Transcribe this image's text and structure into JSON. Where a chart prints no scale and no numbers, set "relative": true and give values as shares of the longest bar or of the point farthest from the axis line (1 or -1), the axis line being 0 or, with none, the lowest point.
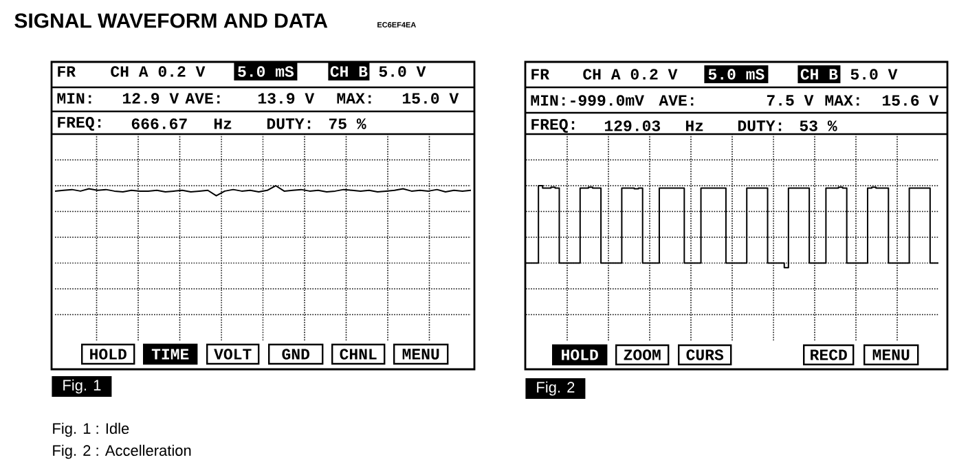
{
  "chart_data": [
    {
      "type": "line",
      "title": "SIGNAL WAVEFORM AND DATA",
      "subtitle": "EC6EF4EA",
      "relative": true,
      "grid": true,
      "color": "#000000",
      "categories": [
        null,
        null,
        null,
        null,
        null,
        null,
        null,
        null,
        null,
        null,
        null,
        null,
        null,
        null,
        null,
        null,
        null,
        null,
        null,
        null,
        null,
        null,
        null,
        null,
        null,
        null,
        null,
        null,
        null,
        null,
        null,
        null,
        null,
        null,
        null,
        null,
        null,
        null,
        null,
        null,
        null,
        null,
        null,
        null,
        null,
        null,
        null,
        null,
        null,
        null
      ],
      "values": [
        0.93,
        0.94,
        0.95,
        0.93,
        0.96,
        0.94,
        0.95,
        0.93,
        0.92,
        0.94,
        0.93,
        0.93,
        0.94,
        0.92,
        0.93,
        0.94,
        0.92,
        0.93,
        0.94,
        0.87,
        0.93,
        0.95,
        0.93,
        0.94,
        0.92,
        0.94,
        1.0,
        0.93,
        0.94,
        0.95,
        0.93,
        0.94,
        0.92,
        0.93,
        0.95,
        0.94,
        0.93,
        0.94,
        0.92,
        0.93,
        0.94,
        0.96,
        0.93,
        0.94,
        0.93,
        0.95,
        0.92,
        0.94,
        0.93,
        0.94
      ],
      "annotations": [
        "FR",
        "CH A 0.2 V",
        "5.0 mS",
        "CH B",
        "5.0 V",
        "MIN:",
        "12.9 V",
        "AVE:",
        "13.9 V",
        "MAX:",
        "15.0 V",
        "FREQ:",
        "666.67",
        "Hz",
        "DUTY:",
        "75 %",
        "HOLD",
        "TIME",
        "VOLT",
        "GND",
        "CHNL",
        "MENU",
        "Fig. 1",
        "Fig. 1 : Idle"
      ]
    },
    {
      "type": "step",
      "relative": true,
      "grid": true,
      "color": "#000000",
      "categories": [
        null,
        null,
        null,
        null,
        null,
        null,
        null,
        null,
        null,
        null,
        null,
        null,
        null,
        null,
        null,
        null,
        null,
        null,
        null,
        null,
        null,
        null,
        null,
        null,
        null,
        null,
        null,
        null,
        null,
        null,
        null,
        null,
        null,
        null,
        null,
        null,
        null,
        null,
        null,
        null,
        null,
        null,
        null,
        null,
        null,
        null,
        null,
        null,
        null,
        null,
        null,
        null,
        null,
        null,
        null,
        null,
        null,
        null,
        null,
        null,
        null,
        null,
        null,
        null,
        null,
        null,
        null,
        null,
        null,
        null,
        null,
        null,
        null,
        null,
        null,
        null,
        null,
        null,
        null,
        null,
        null,
        null,
        null,
        null,
        null,
        null,
        null,
        null,
        null,
        null,
        null,
        null,
        null,
        null,
        null,
        null,
        null,
        null,
        null,
        null
      ],
      "values": [
        0,
        0,
        0,
        1,
        0.97,
        0.97,
        0.98,
        0.97,
        0,
        0,
        0,
        0,
        0,
        0.97,
        0.97,
        0.98,
        0.97,
        0.97,
        0,
        0,
        0,
        0,
        0,
        0.97,
        0.97,
        0.97,
        0.96,
        0.97,
        0,
        0,
        0,
        0,
        0.97,
        0.97,
        0.97,
        0.97,
        0.97,
        0.97,
        0,
        0,
        0,
        0,
        0.97,
        0.97,
        0.97,
        0.97,
        0.97,
        0.97,
        0,
        0,
        0,
        0,
        0,
        0.97,
        0.97,
        0.97,
        0.97,
        0.97,
        0,
        0,
        0,
        0,
        -0.06,
        0.97,
        0.97,
        0.97,
        0.97,
        0.97,
        0,
        0,
        0,
        0,
        0.97,
        0.97,
        0.97,
        0.98,
        0.97,
        0,
        0,
        0,
        0,
        0,
        0.97,
        0.98,
        0.97,
        0.97,
        0.97,
        0,
        0,
        0,
        0,
        0,
        0.97,
        0.97,
        0.97,
        0.97,
        0.97,
        0,
        0,
        0
      ],
      "annotations": [
        "FR",
        "CH A 0.2 V",
        "5.0 mS",
        "CH B",
        "5.0 V",
        "MIN:-999.0mV",
        "AVE:",
        "7.5 V",
        "MAX:",
        "15.6 V",
        "FREQ:",
        "129.03",
        "Hz",
        "DUTY:",
        "53 %",
        "HOLD",
        "ZOOM",
        "CURS",
        "RECD",
        "MENU",
        "Fig. 2",
        "Fig. 2 : Accelleration"
      ]
    }
  ]
}
